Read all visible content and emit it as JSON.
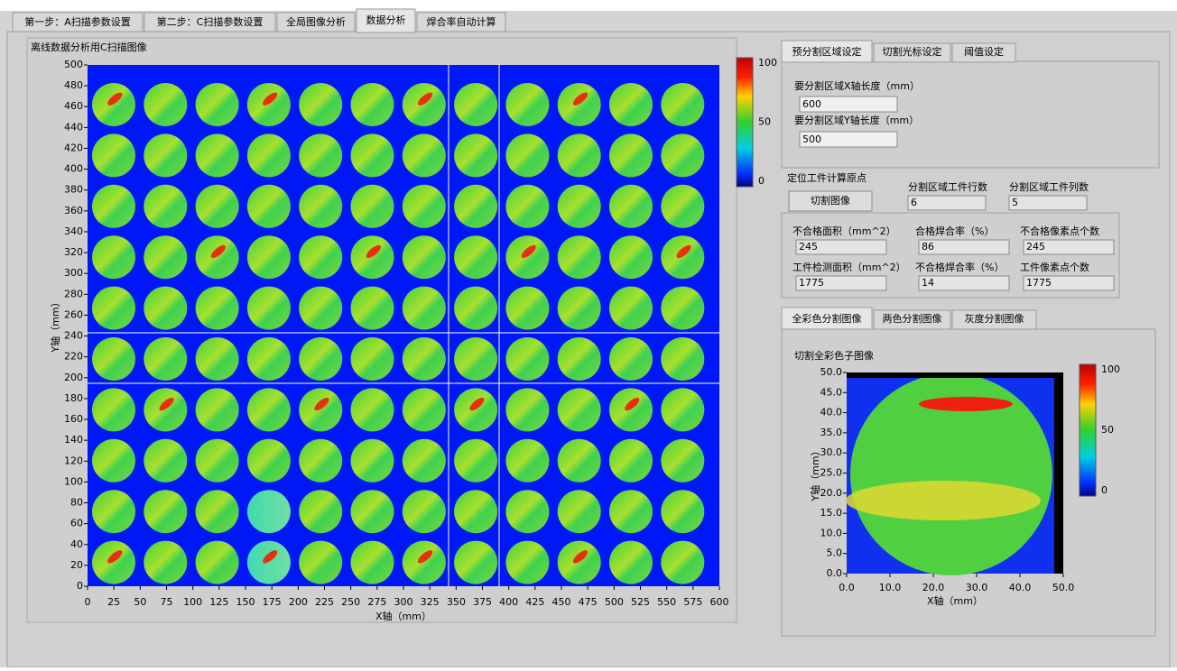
{
  "tabs": [
    "第一步：A扫描参数设置",
    "第二步：C扫描参数设置",
    "全局图像分析",
    "数据分析",
    "焊合率自动计算"
  ],
  "main_plot": {
    "title": "离线数据分析用C扫描图像",
    "x_label": "X轴（mm）",
    "y_label": "Y轴（mm）",
    "xticks": [
      "0",
      "25",
      "50",
      "75",
      "100",
      "125",
      "150",
      "175",
      "200",
      "225",
      "250",
      "275",
      "300",
      "325",
      "350",
      "375",
      "400",
      "425",
      "450",
      "475",
      "500",
      "525",
      "550",
      "575",
      "600"
    ],
    "yticks": [
      "0",
      "20",
      "40",
      "60",
      "80",
      "100",
      "120",
      "140",
      "160",
      "180",
      "200",
      "220",
      "240",
      "260",
      "280",
      "300",
      "320",
      "340",
      "360",
      "380",
      "400",
      "420",
      "440",
      "460",
      "480",
      "500"
    ],
    "colorbar_ticks": [
      "100",
      "50",
      "0"
    ]
  },
  "settings_tabs": [
    "预分割区域设定",
    "切割光标设定",
    "阈值设定"
  ],
  "settings": {
    "x_length_label": "要分割区域X轴长度（mm）",
    "x_length": "600",
    "y_length_label": "要分割区域Y轴长度（mm）",
    "y_length": "500"
  },
  "origin": {
    "label": "定位工件计算原点",
    "button": "切割图像",
    "rows_label": "分割区域工件行数",
    "rows": "6",
    "cols_label": "分割区域工件列数",
    "cols": "5"
  },
  "stats": [
    {
      "label": "不合格面积（mm^2）",
      "value": "245"
    },
    {
      "label": "合格焊合率（%）",
      "value": "86"
    },
    {
      "label": "不合格像素点个数",
      "value": "245"
    },
    {
      "label": "工件检测面积（mm^2）",
      "value": "1775"
    },
    {
      "label": "不合格焊合率（%）",
      "value": "14"
    },
    {
      "label": "工件像素点个数",
      "value": "1775"
    }
  ],
  "image_tabs": [
    "全彩色分割图像",
    "两色分割图像",
    "灰度分割图像"
  ],
  "sub_plot": {
    "title": "切割全彩色子图像",
    "x_label": "X轴（mm）",
    "y_label": "Y轴（mm）",
    "xticks": [
      "0.0",
      "10.0",
      "20.0",
      "30.0",
      "40.0",
      "50.0"
    ],
    "yticks": [
      "0.0",
      "5.0",
      "10.0",
      "15.0",
      "20.0",
      "25.0",
      "30.0",
      "35.0",
      "40.0",
      "45.0",
      "50.0"
    ],
    "colorbar_ticks": [
      "100",
      "50",
      "0"
    ]
  }
}
